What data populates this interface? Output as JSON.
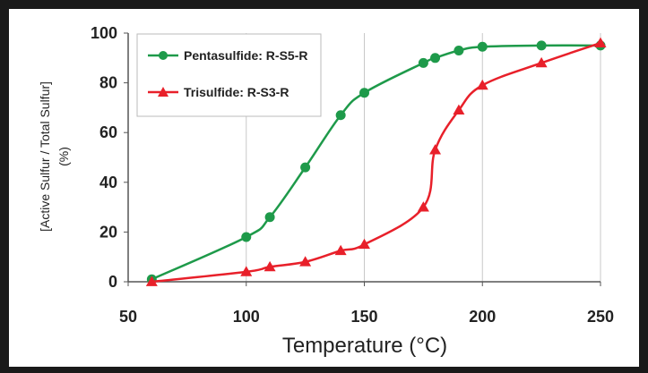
{
  "chart_data": {
    "type": "line",
    "xlabel": "Temperature (°C)",
    "ylabel_line1": "[Active Sulfur / Total Sulfur]",
    "ylabel_line2": "(%)",
    "xlim": [
      50,
      250
    ],
    "ylim": [
      0,
      100
    ],
    "xticks": [
      50,
      100,
      150,
      200,
      250
    ],
    "yticks": [
      0,
      20,
      40,
      60,
      80,
      100
    ],
    "grid": "vertical",
    "legend_placement": "top-left",
    "series": [
      {
        "name": "Pentasulfide: R-S5-R",
        "color": "#1e9a4a",
        "marker": "circle",
        "x": [
          60,
          100,
          110,
          125,
          140,
          150,
          175,
          180,
          190,
          200,
          225,
          250
        ],
        "y": [
          1,
          18,
          26,
          46,
          67,
          76,
          88,
          90,
          93,
          94.5,
          95,
          95
        ]
      },
      {
        "name": "Trisulfide: R-S3-R",
        "color": "#e8202a",
        "marker": "triangle",
        "x": [
          60,
          100,
          110,
          125,
          140,
          150,
          175,
          180,
          190,
          200,
          225,
          250
        ],
        "y": [
          0,
          4,
          6,
          8,
          12.5,
          15,
          30,
          53,
          69,
          79,
          88,
          96
        ]
      }
    ]
  }
}
